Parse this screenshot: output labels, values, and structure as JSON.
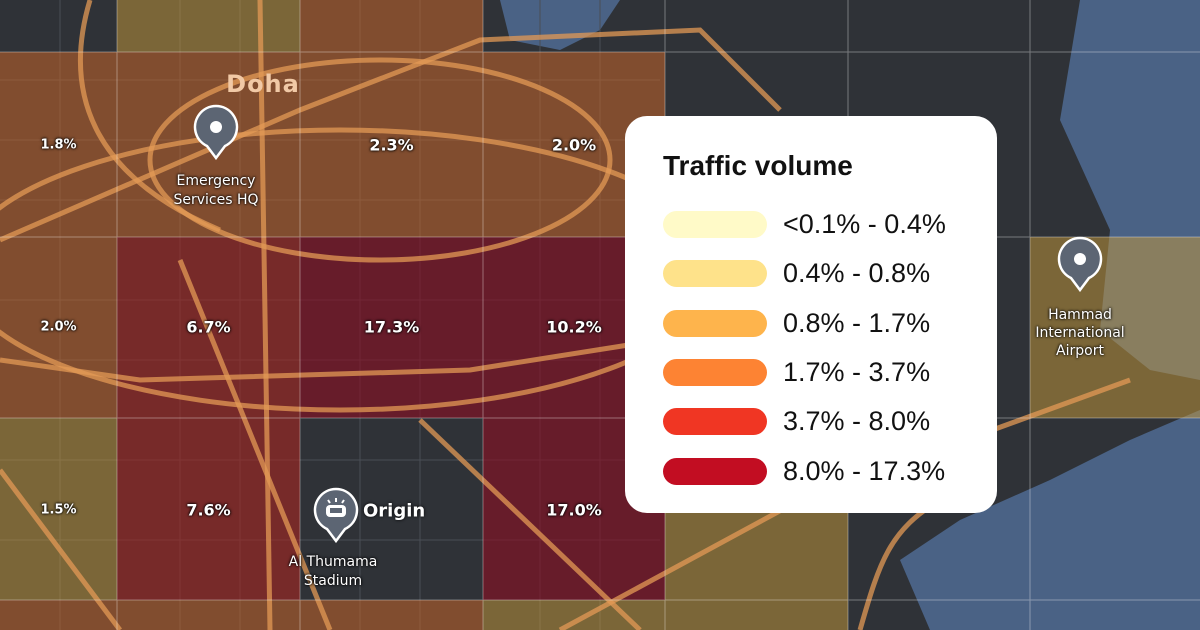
{
  "map": {
    "city_label": "Doha",
    "base_color": "#2f3237",
    "water_color": "#4a6285",
    "road_color": "#e39a55",
    "grid_cells": [
      {
        "row": 1,
        "col": 0,
        "value": "1.8%",
        "band": 3
      },
      {
        "row": 1,
        "col": 1,
        "value": "",
        "band": 3
      },
      {
        "row": 1,
        "col": 2,
        "value": "2.3%",
        "band": 3
      },
      {
        "row": 1,
        "col": 3,
        "value": "2.0%",
        "band": 3
      },
      {
        "row": 2,
        "col": 0,
        "value": "2.0%",
        "band": 3
      },
      {
        "row": 2,
        "col": 1,
        "value": "6.7%",
        "band": 4
      },
      {
        "row": 2,
        "col": 2,
        "value": "17.3%",
        "band": 5
      },
      {
        "row": 2,
        "col": 3,
        "value": "10.2%",
        "band": 5
      },
      {
        "row": 2,
        "col": 6,
        "value": "",
        "band": 2
      },
      {
        "row": 3,
        "col": 0,
        "value": "1.5%",
        "band": 2
      },
      {
        "row": 3,
        "col": 1,
        "value": "7.6%",
        "band": 4
      },
      {
        "row": 3,
        "col": 3,
        "value": "17.0%",
        "band": 5
      },
      {
        "row": 3,
        "col": 4,
        "value": "",
        "band": 2
      },
      {
        "row": 0,
        "col": 1,
        "value": "",
        "band": 2
      },
      {
        "row": 0,
        "col": 2,
        "value": "",
        "band": 3
      },
      {
        "row": 4,
        "col": 0,
        "value": "",
        "band": 3
      },
      {
        "row": 4,
        "col": 1,
        "value": "",
        "band": 3
      },
      {
        "row": 4,
        "col": 2,
        "value": "",
        "band": 3
      },
      {
        "row": 4,
        "col": 3,
        "value": "",
        "band": 2
      },
      {
        "row": 4,
        "col": 4,
        "value": "",
        "band": 2
      }
    ],
    "pois": [
      {
        "name": "Emergency Services HQ",
        "line1": "Emergency",
        "line2": "Services HQ",
        "icon": "map-pin-icon"
      },
      {
        "name": "Al Thumama Stadium",
        "line1": "Al Thumama",
        "line2": "Stadium",
        "icon": "stadium-icon",
        "tag": "Origin"
      },
      {
        "name": "Hammad International Airport",
        "line1": "Hammad",
        "line2": "International",
        "line3": "Airport",
        "icon": "map-pin-icon"
      }
    ]
  },
  "legend": {
    "title": "Traffic volume",
    "items": [
      {
        "label": "<0.1% - 0.4%",
        "color": "#fffac8"
      },
      {
        "label": "0.4% - 0.8%",
        "color": "#fee28a"
      },
      {
        "label": "0.8% - 1.7%",
        "color": "#feb44c"
      },
      {
        "label": "1.7% - 3.7%",
        "color": "#fd8333"
      },
      {
        "label": "3.7% - 8.0%",
        "color": "#f03623"
      },
      {
        "label": "8.0% - 17.3%",
        "color": "#c20d22"
      }
    ]
  }
}
